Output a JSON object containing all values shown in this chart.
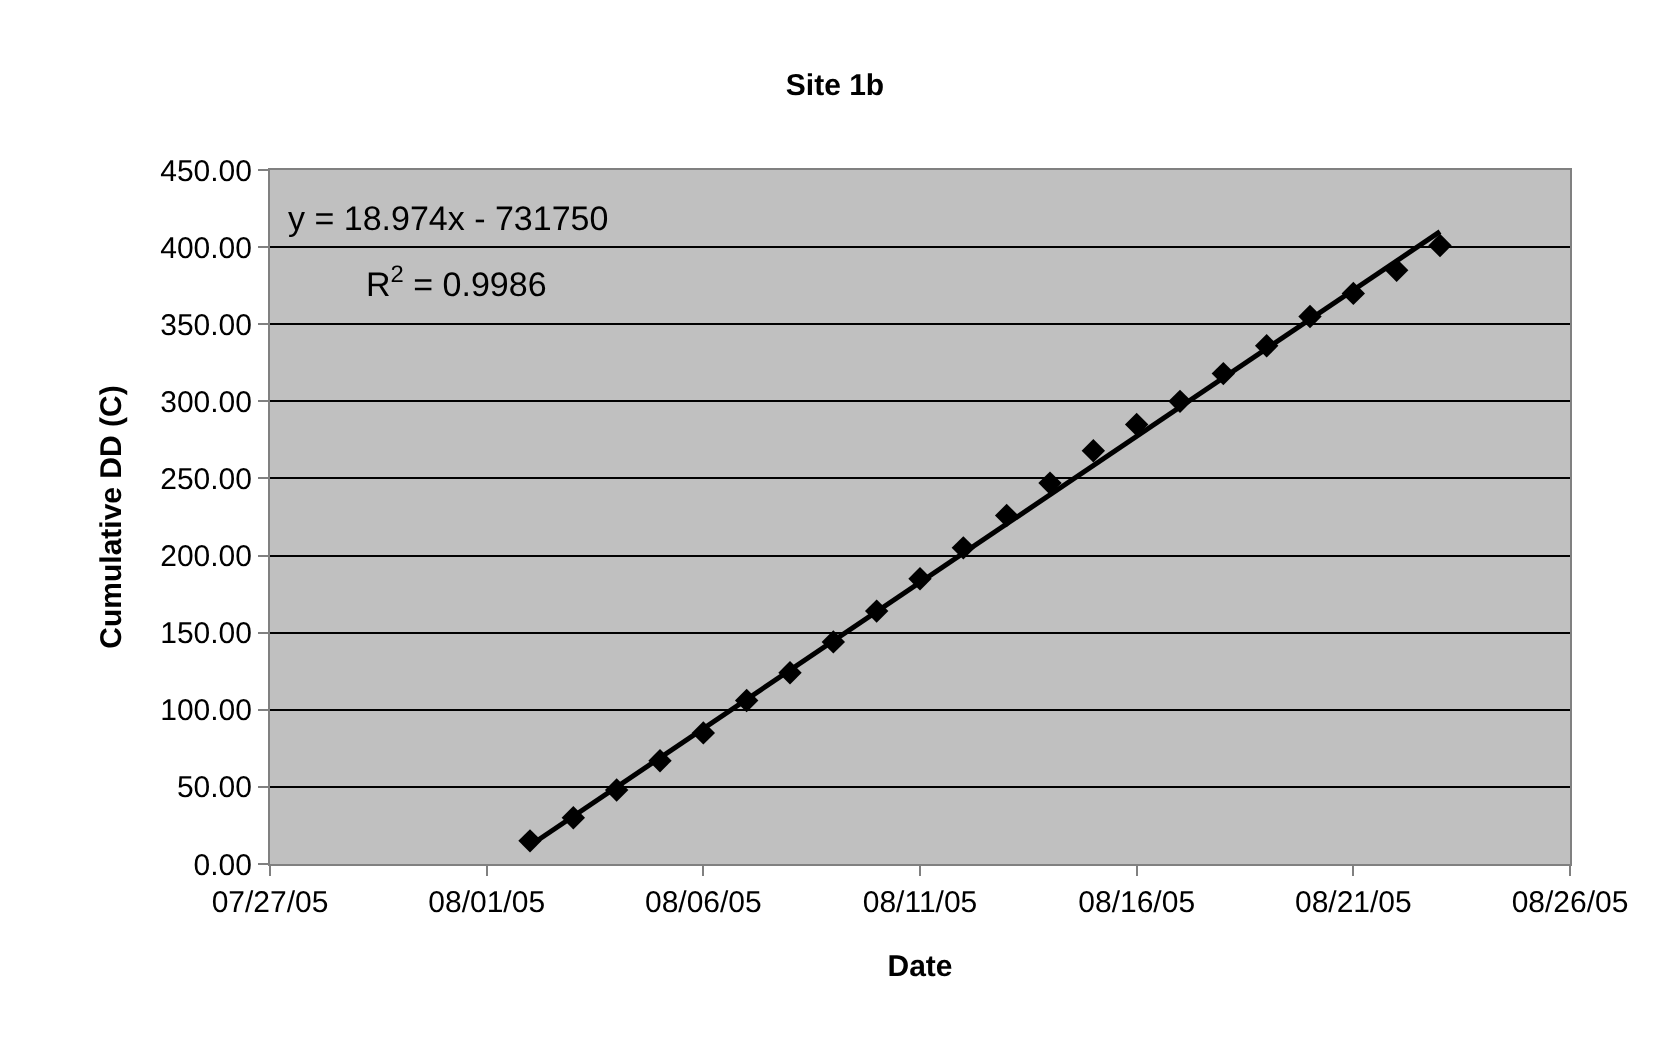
{
  "chart_data": {
    "type": "scatter",
    "title": "Site 1b",
    "xlabel": "Date",
    "ylabel": "Cumulative DD (C)",
    "series": [
      {
        "color": "#000000",
        "marker": "diamond",
        "x": [
          "--08-02",
          "--08-03",
          "--08-04",
          "--08-05",
          "--08-06",
          "--08-07",
          "--08-08",
          "--08-09",
          "--08-10",
          "--08-11",
          "--08-12",
          "--08-13",
          "--08-14",
          "--08-15",
          "--08-16",
          "--08-17",
          "--08-18",
          "--08-19",
          "--08-20",
          "--08-21",
          "--08-22",
          "--08-23"
        ],
        "values": [
          15,
          30,
          48,
          67,
          85,
          106,
          124,
          144,
          164,
          185,
          205,
          226,
          247,
          268,
          285,
          300,
          318,
          336,
          355,
          370,
          385,
          401
        ]
      },
      {
        "type": "line",
        "color": "#000000",
        "marker": "none",
        "line_style": "solid",
        "x": [
          "--08-02",
          "--08-23"
        ],
        "values": [
          12,
          410
        ]
      }
    ],
    "annotations": [
      "y = 18.974x - 731750",
      "R$^{2}$ = 0.9986"
    ],
    "xlim": [
      "--07-27",
      "--08-26"
    ],
    "xticks": [
      {
        "value": "--07-27",
        "label": "07/27/05"
      },
      {
        "value": "--08-01",
        "label": "08/01/05"
      },
      {
        "value": "--08-06",
        "label": "08/06/05"
      },
      {
        "value": "--08-11",
        "label": "08/11/05"
      },
      {
        "value": "--08-16",
        "label": "08/16/05"
      },
      {
        "value": "--08-21",
        "label": "08/21/05"
      },
      {
        "value": "--08-26",
        "label": "08/26/05"
      }
    ],
    "ylim": [
      0,
      450
    ],
    "yticks": [
      {
        "value": 0,
        "label": "0.00"
      },
      {
        "value": 50,
        "label": "50.00"
      },
      {
        "value": 100,
        "label": "100.00"
      },
      {
        "value": 150,
        "label": "150.00"
      },
      {
        "value": 200,
        "label": "200.00"
      },
      {
        "value": 250,
        "label": "250.00"
      },
      {
        "value": 300,
        "label": "300.00"
      },
      {
        "value": 350,
        "label": "350.00"
      },
      {
        "value": 400,
        "label": "400.00"
      },
      {
        "value": 450,
        "label": "450.00"
      }
    ],
    "grid": "y",
    "legend": false
  }
}
